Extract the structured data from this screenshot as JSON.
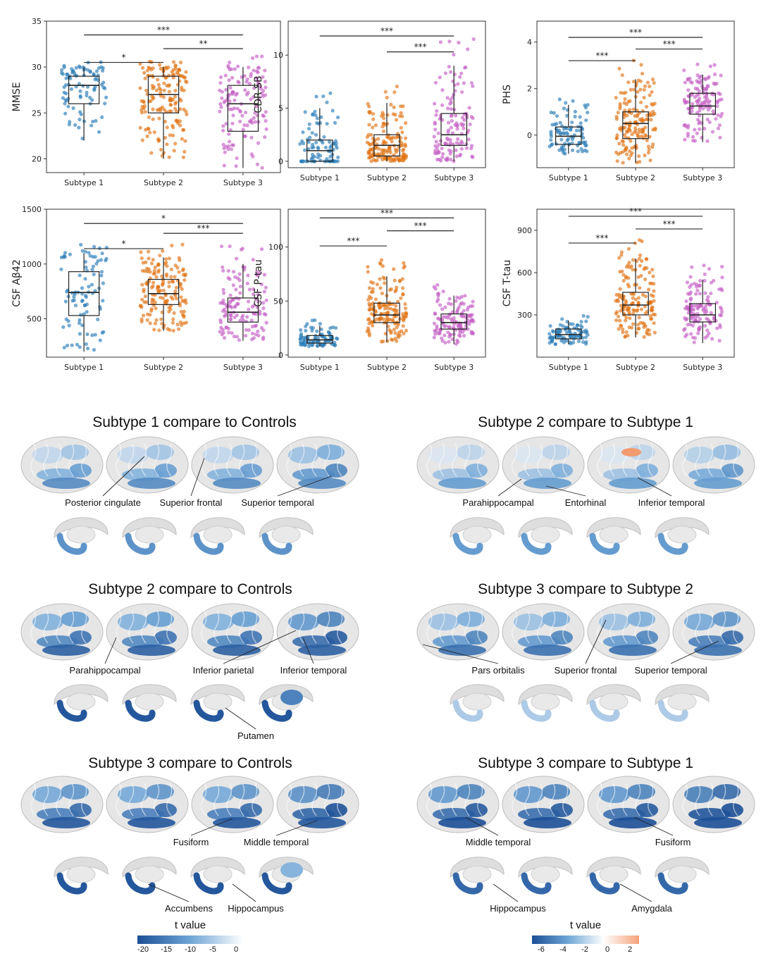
{
  "chart_data": [
    {
      "type": "box",
      "id": "mmse",
      "ylabel": "MMSE",
      "ylim": [
        18.5,
        35
      ],
      "yticks": [
        20,
        25,
        30,
        35
      ],
      "categories": [
        "Subtype 1",
        "Subtype 2",
        "Subtype 3"
      ],
      "colors": [
        "#2a7db7",
        "#e07314",
        "#c560c4"
      ],
      "boxes": [
        {
          "whislo": 22,
          "q1": 26,
          "med": 28,
          "q3": 29,
          "whishi": 30
        },
        {
          "whislo": 20,
          "q1": 25,
          "med": 27,
          "q3": 29,
          "whishi": 30
        },
        {
          "whislo": 19,
          "q1": 23,
          "med": 26,
          "q3": 28,
          "whishi": 30
        }
      ],
      "n_points": [
        90,
        160,
        130
      ],
      "sig": [
        {
          "from": 0,
          "to": 2,
          "label": "***",
          "y": 33.5
        },
        {
          "from": 1,
          "to": 2,
          "label": "**",
          "y": 32
        },
        {
          "from": 0,
          "to": 1,
          "label": "*",
          "y": 30.5
        }
      ]
    },
    {
      "type": "box",
      "id": "cdrsb",
      "ylabel": "CDR SB",
      "ylim": [
        -0.6,
        13.2
      ],
      "yticks": [
        0,
        5,
        10
      ],
      "categories": [
        "Subtype 1",
        "Subtype 2",
        "Subtype 3"
      ],
      "colors": [
        "#2a7db7",
        "#e07314",
        "#c560c4"
      ],
      "boxes": [
        {
          "whislo": 0,
          "q1": 0,
          "med": 1,
          "q3": 2,
          "whishi": 5
        },
        {
          "whislo": 0,
          "q1": 0.5,
          "med": 1.5,
          "q3": 2.5,
          "whishi": 5.5
        },
        {
          "whislo": 0,
          "q1": 1.5,
          "med": 2.5,
          "q3": 4.5,
          "whishi": 9
        }
      ],
      "n_points": [
        90,
        160,
        130
      ],
      "sig": [
        {
          "from": 0,
          "to": 2,
          "label": "***",
          "y": 11.8
        },
        {
          "from": 1,
          "to": 2,
          "label": "***",
          "y": 10.3
        }
      ]
    },
    {
      "type": "box",
      "id": "phs",
      "ylabel": "PHS",
      "ylim": [
        -1.4,
        4.9
      ],
      "yticks": [
        0,
        2,
        4
      ],
      "categories": [
        "Subtype 1",
        "Subtype 2",
        "Subtype 3"
      ],
      "colors": [
        "#2a7db7",
        "#e07314",
        "#c560c4"
      ],
      "boxes": [
        {
          "whislo": -0.8,
          "q1": -0.4,
          "med": -0.05,
          "q3": 0.35,
          "whishi": 1.3
        },
        {
          "whislo": -1.2,
          "q1": -0.15,
          "med": 0.5,
          "q3": 1.0,
          "whishi": 2.4
        },
        {
          "whislo": -0.3,
          "q1": 0.9,
          "med": 1.25,
          "q3": 1.8,
          "whishi": 2.6
        }
      ],
      "n_points": [
        90,
        160,
        130
      ],
      "sig": [
        {
          "from": 0,
          "to": 2,
          "label": "***",
          "y": 4.2
        },
        {
          "from": 1,
          "to": 2,
          "label": "***",
          "y": 3.7
        },
        {
          "from": 0,
          "to": 1,
          "label": "***",
          "y": 3.2
        }
      ]
    },
    {
      "type": "box",
      "id": "abeta",
      "ylabel": "CSF Aβ42",
      "ylim": [
        150,
        1500
      ],
      "yticks": [
        500,
        1000,
        1500
      ],
      "categories": [
        "Subtype 1",
        "Subtype 2",
        "Subtype 3"
      ],
      "colors": [
        "#2a7db7",
        "#e07314",
        "#c560c4"
      ],
      "boxes": [
        {
          "whislo": 200,
          "q1": 530,
          "med": 740,
          "q3": 930,
          "whishi": 1100
        },
        {
          "whislo": 390,
          "q1": 630,
          "med": 730,
          "q3": 860,
          "whishi": 1060
        },
        {
          "whislo": 300,
          "q1": 470,
          "med": 560,
          "q3": 690,
          "whishi": 1000
        }
      ],
      "n_points": [
        90,
        160,
        130
      ],
      "sig": [
        {
          "from": 0,
          "to": 2,
          "label": "*",
          "y": 1370
        },
        {
          "from": 1,
          "to": 2,
          "label": "***",
          "y": 1280
        },
        {
          "from": 0,
          "to": 1,
          "label": "*",
          "y": 1140
        }
      ]
    },
    {
      "type": "box",
      "id": "ptau",
      "ylabel": "CSF P-tau",
      "ylim": [
        -2,
        135
      ],
      "yticks": [
        0,
        50,
        100
      ],
      "categories": [
        "Subtype 1",
        "Subtype 2",
        "Subtype 3"
      ],
      "colors": [
        "#2a7db7",
        "#e07314",
        "#c560c4"
      ],
      "boxes": [
        {
          "whislo": 8,
          "q1": 11,
          "med": 14,
          "q3": 18,
          "whishi": 27
        },
        {
          "whislo": 12,
          "q1": 30,
          "med": 37,
          "q3": 48,
          "whishi": 73
        },
        {
          "whislo": 10,
          "q1": 24,
          "med": 30,
          "q3": 38,
          "whishi": 55
        }
      ],
      "n_points": [
        90,
        160,
        130
      ],
      "sig": [
        {
          "from": 0,
          "to": 2,
          "label": "***",
          "y": 127
        },
        {
          "from": 1,
          "to": 2,
          "label": "***",
          "y": 115
        },
        {
          "from": 0,
          "to": 1,
          "label": "***",
          "y": 101
        }
      ]
    },
    {
      "type": "box",
      "id": "ttau",
      "ylabel": "CSF T-tau",
      "ylim": [
        0,
        1050
      ],
      "yticks": [
        300,
        600,
        900
      ],
      "categories": [
        "Subtype 1",
        "Subtype 2",
        "Subtype 3"
      ],
      "colors": [
        "#2a7db7",
        "#e07314",
        "#c560c4"
      ],
      "boxes": [
        {
          "whislo": 90,
          "q1": 130,
          "med": 160,
          "q3": 200,
          "whishi": 260
        },
        {
          "whislo": 140,
          "q1": 300,
          "med": 370,
          "q3": 460,
          "whishi": 700
        },
        {
          "whislo": 100,
          "q1": 250,
          "med": 300,
          "q3": 380,
          "whishi": 550
        }
      ],
      "n_points": [
        90,
        160,
        130
      ],
      "sig": [
        {
          "from": 0,
          "to": 2,
          "label": "***",
          "y": 1000
        },
        {
          "from": 1,
          "to": 2,
          "label": "***",
          "y": 910
        },
        {
          "from": 0,
          "to": 1,
          "label": "***",
          "y": 810
        }
      ]
    }
  ],
  "brain_panels": [
    {
      "title": "Subtype 1 compare to Controls",
      "labels": [
        "Posterior cingulate",
        "Superior frontal",
        "Superior temporal"
      ],
      "intensity": 0.35,
      "sub_intensity": 0.6,
      "positive_patch": false
    },
    {
      "title": "Subtype 2 compare to Subtype 1",
      "labels": [
        "Parahippocampal",
        "Entorhinal",
        "Inferior  temporal"
      ],
      "intensity": 0.25,
      "sub_intensity": 0.55,
      "positive_patch": true
    },
    {
      "title": "Subtype 2 compare to Controls",
      "labels": [
        "Parahippocampal",
        "Inferior  parietal",
        "Inferior  temporal",
        "Putamen"
      ],
      "intensity": 0.6,
      "sub_intensity": 0.95,
      "positive_patch": false
    },
    {
      "title": "Subtype 3 compare to Subtype 2",
      "labels": [
        "Pars orbitalis",
        "Superior frontal",
        "Superior temporal"
      ],
      "intensity": 0.5,
      "sub_intensity": 0.25,
      "positive_patch": false
    },
    {
      "title": "Subtype 3 compare to Controls",
      "labels": [
        "Fusiform",
        "Middle temporal",
        "Accumbens",
        "Hippocampus"
      ],
      "intensity": 0.65,
      "sub_intensity": 0.95,
      "positive_patch": false
    },
    {
      "title": "Subtype 3 compare to Subtype 1",
      "labels": [
        "Middle temporal",
        "Fusiform",
        "Hippocampus",
        "Amygdala"
      ],
      "intensity": 0.75,
      "sub_intensity": 0.85,
      "positive_patch": false
    }
  ],
  "colorbars": [
    {
      "title": "t value",
      "ticks": [
        "-20",
        "-15",
        "-10",
        "-5",
        "0"
      ],
      "colors": [
        "#1c4f96",
        "#6ea5d6",
        "#ffffff"
      ]
    },
    {
      "title": "t value",
      "ticks": [
        "-6",
        "-4",
        "-2",
        "0",
        "2"
      ],
      "colors": [
        "#1c4f96",
        "#6ea5d6",
        "#ffffff",
        "#f5a27a"
      ]
    }
  ]
}
